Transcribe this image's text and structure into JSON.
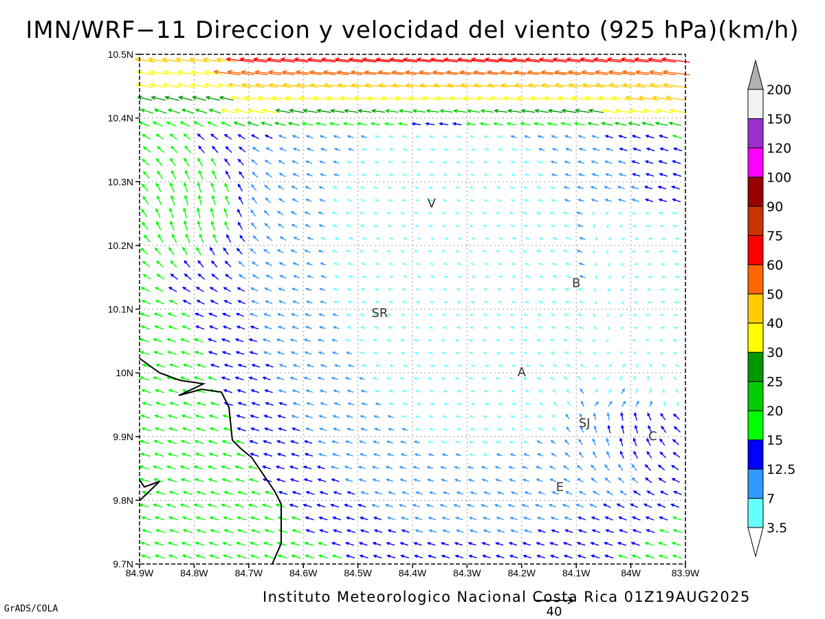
{
  "title": "IMN/WRF−11 Direccion y velocidad del viento (925 hPa)(km/h)",
  "footer": "Instituto Meteorologico Nacional Costa Rica 01Z19AUG2025",
  "credit": "GrADS/COLA",
  "map": {
    "lon_range": [
      -84.9,
      -83.9
    ],
    "lat_range": [
      9.7,
      10.5
    ],
    "lat_ticks": [
      "10.5N",
      "10.4N",
      "10.3N",
      "10.2N",
      "10.1N",
      "10N",
      "9.9N",
      "9.8N",
      "9.7N"
    ],
    "lon_ticks": [
      "84.9W",
      "84.8W",
      "84.7W",
      "84.6W",
      "84.5W",
      "84.4W",
      "84.3W",
      "84.2W",
      "84.1W",
      "84W",
      "83.9W"
    ],
    "grid": "dotted",
    "places": [
      {
        "name": "V",
        "lon": -84.365,
        "lat": 10.265
      },
      {
        "name": "SR",
        "lon": -84.46,
        "lat": 10.093
      },
      {
        "name": "B",
        "lon": -84.1,
        "lat": 10.14
      },
      {
        "name": "A",
        "lon": -84.2,
        "lat": 10.0
      },
      {
        "name": "SJ",
        "lon": -84.085,
        "lat": 9.92
      },
      {
        "name": "C",
        "lon": -83.96,
        "lat": 9.9
      },
      {
        "name": "E",
        "lon": -84.13,
        "lat": 9.82
      }
    ],
    "reference_vector": {
      "label": "40",
      "speed": 40
    }
  },
  "colorbar": {
    "labels": [
      "3.5",
      "7",
      "12.5",
      "15",
      "20",
      "25",
      "30",
      "40",
      "50",
      "60",
      "75",
      "90",
      "100",
      "120",
      "150",
      "200"
    ],
    "colors": [
      "#66ffff",
      "#3399ff",
      "#0000ff",
      "#00ff00",
      "#00cc00",
      "#009900",
      "#ffff00",
      "#ffcc00",
      "#ff6600",
      "#ff0000",
      "#cc3300",
      "#990000",
      "#ff00ff",
      "#9933cc",
      "#f2f2f2",
      "#b0b0b0"
    ]
  },
  "chart_data": {
    "type": "vector-field",
    "level": "925 hPa",
    "units": "km/h",
    "color_levels": [
      3.5,
      7,
      12.5,
      15,
      20,
      25,
      30,
      40,
      50,
      60,
      75,
      90,
      100,
      120,
      150,
      200
    ]
  }
}
